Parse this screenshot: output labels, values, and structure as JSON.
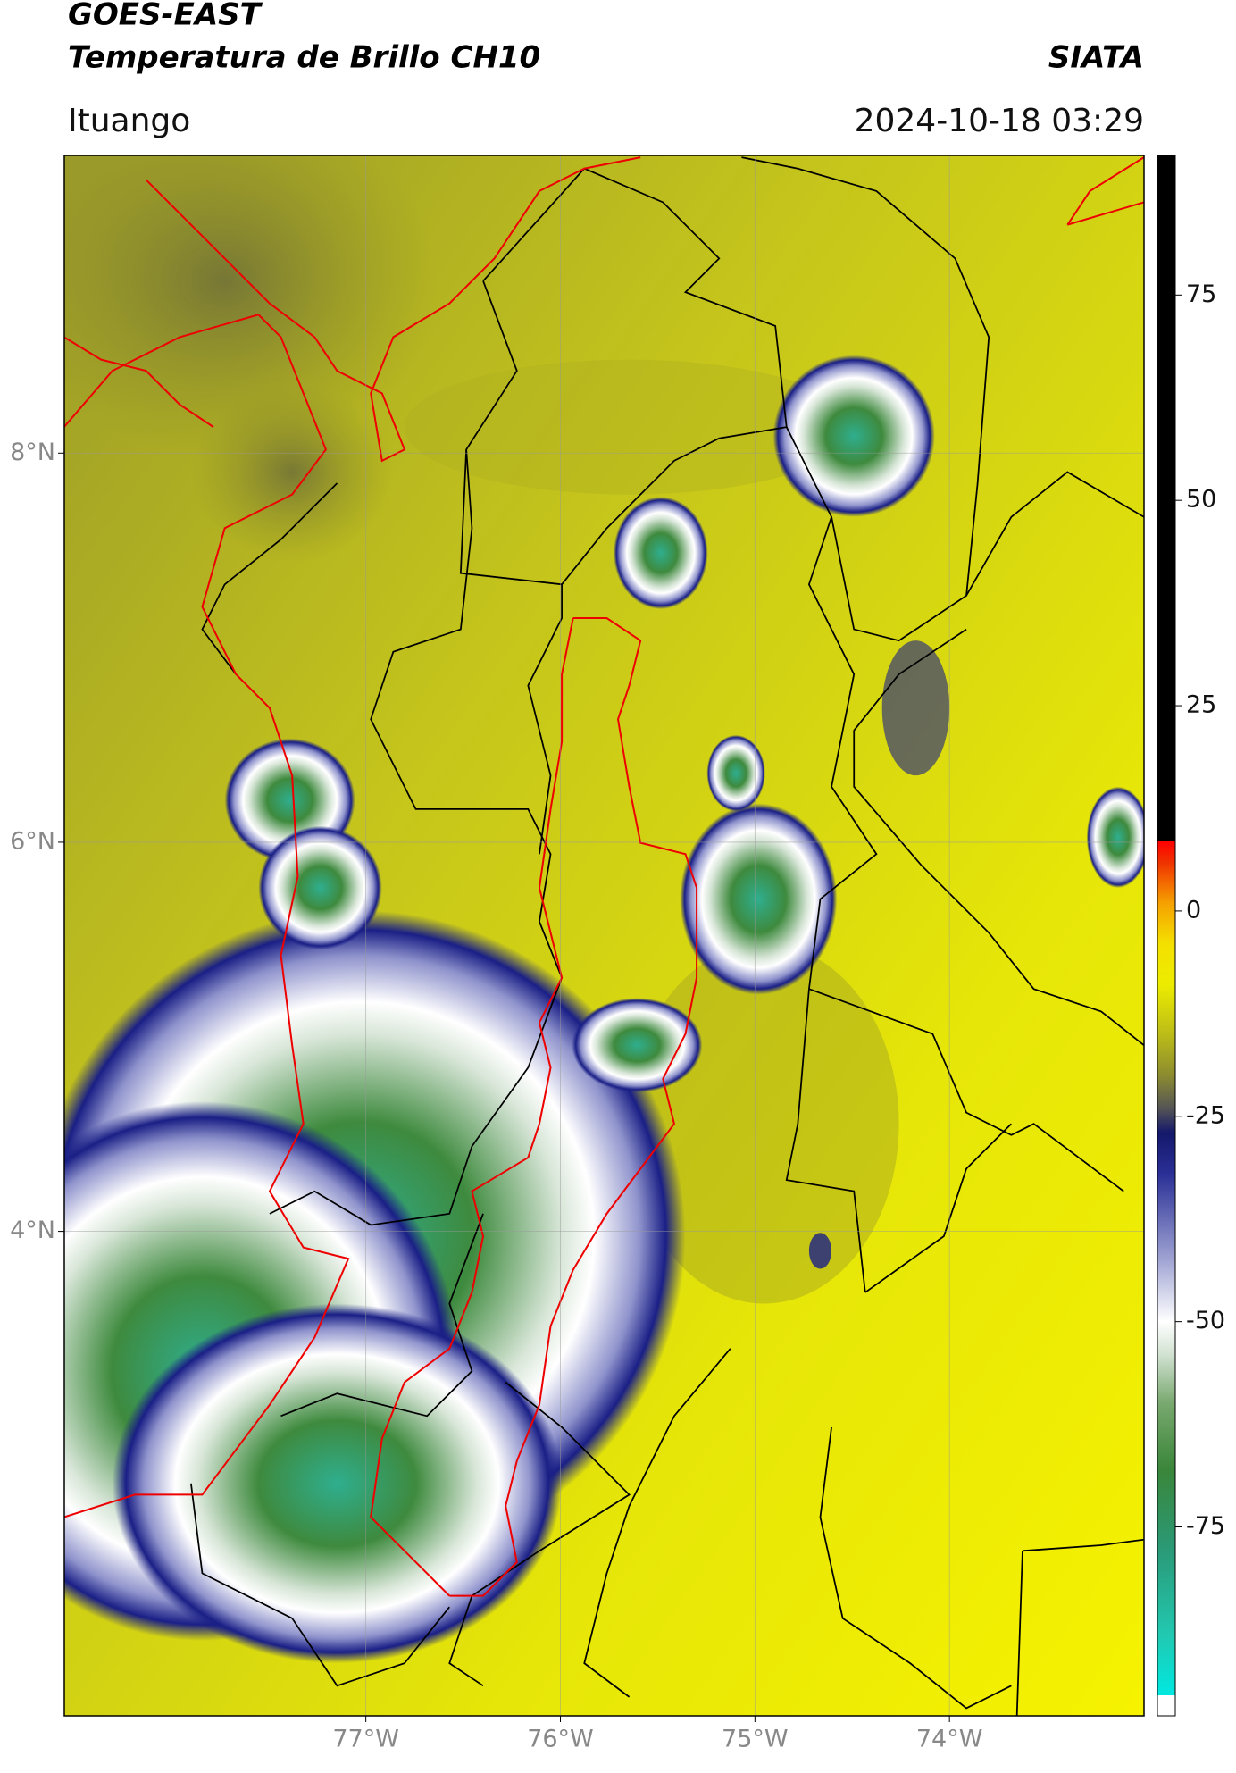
{
  "header": {
    "title": "GOES-EAST",
    "subtitle": "Temperatura de Brillo CH10",
    "source": "SIATA",
    "region": "Ituango",
    "datetime": "2024-10-18 03:29"
  },
  "map": {
    "xlim": [
      -78.55,
      -73.0
    ],
    "ylim": [
      1.51,
      9.53
    ],
    "xticks": [
      {
        "value": -77,
        "label": "77°W"
      },
      {
        "value": -76,
        "label": "76°W"
      },
      {
        "value": -75,
        "label": "75°W"
      },
      {
        "value": -74,
        "label": "74°W"
      }
    ],
    "yticks": [
      {
        "value": 8,
        "label": "8°N"
      },
      {
        "value": 6,
        "label": "6°N"
      },
      {
        "value": 4,
        "label": "4°N"
      }
    ],
    "grid": true
  },
  "colorbar": {
    "lim": [
      -98,
      92
    ],
    "ticks": [
      75,
      50,
      25,
      0,
      -25,
      -50,
      -75
    ],
    "colormap": [
      [
        -98,
        "#ffffff"
      ],
      [
        -95.5,
        "#ffffff"
      ],
      [
        -95.5,
        "#00e8e0"
      ],
      [
        -88,
        "#22c8b0"
      ],
      [
        -78,
        "#2a9a78"
      ],
      [
        -68,
        "#3a863a"
      ],
      [
        -60,
        "#78a86e"
      ],
      [
        -54,
        "#d2e2d2"
      ],
      [
        -50,
        "#ffffff"
      ],
      [
        -42,
        "#9a9ed0"
      ],
      [
        -32,
        "#2a2f96"
      ],
      [
        -27,
        "#14186a"
      ],
      [
        -24,
        "#555555"
      ],
      [
        -20,
        "#8c8c30"
      ],
      [
        -15,
        "#bcbc18"
      ],
      [
        -9,
        "#ecec00"
      ],
      [
        -4,
        "#f4e000"
      ],
      [
        1,
        "#f5a000"
      ],
      [
        6,
        "#f03000"
      ],
      [
        8.5,
        "#ff0000"
      ],
      [
        8.5,
        "#000000"
      ],
      [
        92,
        "#000000"
      ]
    ]
  }
}
